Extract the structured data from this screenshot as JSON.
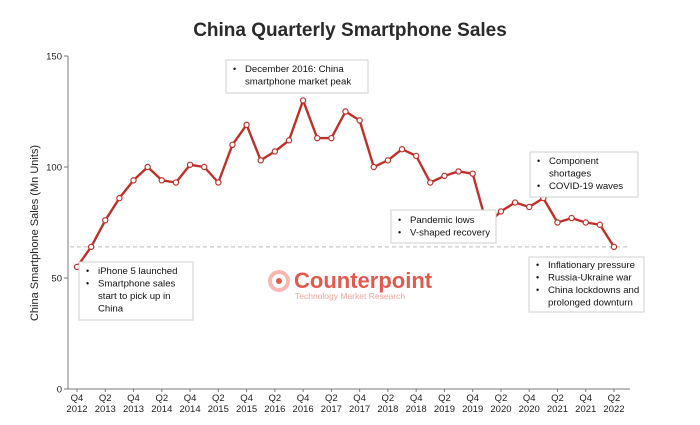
{
  "chart_data": {
    "type": "line",
    "title": "China Quarterly Smartphone Sales",
    "xlabel": "",
    "ylabel": "China Smartphone Sales (Mn Units)",
    "ylim": [
      0,
      150
    ],
    "yticks": [
      0,
      50,
      100,
      150
    ],
    "grid": false,
    "categories": [
      "Q4 2012",
      "Q1 2013",
      "Q2 2013",
      "Q3 2013",
      "Q4 2013",
      "Q1 2014",
      "Q2 2014",
      "Q3 2014",
      "Q4 2014",
      "Q1 2015",
      "Q2 2015",
      "Q3 2015",
      "Q4 2015",
      "Q1 2016",
      "Q2 2016",
      "Q3 2016",
      "Q4 2016",
      "Q1 2017",
      "Q2 2017",
      "Q3 2017",
      "Q4 2017",
      "Q1 2018",
      "Q2 2018",
      "Q3 2018",
      "Q4 2018",
      "Q1 2019",
      "Q2 2019",
      "Q3 2019",
      "Q4 2019",
      "Q1 2020",
      "Q2 2020",
      "Q3 2020",
      "Q4 2020",
      "Q1 2021",
      "Q2 2021",
      "Q3 2021",
      "Q4 2021",
      "Q1 2022",
      "Q2 2022"
    ],
    "x_tick_labels": [
      {
        "q": "Q4",
        "y": "2012"
      },
      {
        "q": "Q2",
        "y": "2013"
      },
      {
        "q": "Q4",
        "y": "2013"
      },
      {
        "q": "Q2",
        "y": "2014"
      },
      {
        "q": "Q4",
        "y": "2014"
      },
      {
        "q": "Q2",
        "y": "2015"
      },
      {
        "q": "Q4",
        "y": "2015"
      },
      {
        "q": "Q2",
        "y": "2016"
      },
      {
        "q": "Q4",
        "y": "2016"
      },
      {
        "q": "Q2",
        "y": "2017"
      },
      {
        "q": "Q4",
        "y": "2017"
      },
      {
        "q": "Q2",
        "y": "2018"
      },
      {
        "q": "Q4",
        "y": "2018"
      },
      {
        "q": "Q2",
        "y": "2019"
      },
      {
        "q": "Q4",
        "y": "2019"
      },
      {
        "q": "Q2",
        "y": "2020"
      },
      {
        "q": "Q4",
        "y": "2020"
      },
      {
        "q": "Q2",
        "y": "2021"
      },
      {
        "q": "Q4",
        "y": "2021"
      },
      {
        "q": "Q2",
        "y": "2022"
      }
    ],
    "series": [
      {
        "name": "China Smartphone Sales",
        "color": "#c0302b",
        "values": [
          55,
          64,
          76,
          86,
          94,
          100,
          94,
          93,
          101,
          100,
          93,
          110,
          119,
          103,
          107,
          112,
          130,
          113,
          113,
          125,
          121,
          100,
          103,
          108,
          105,
          93,
          96,
          98,
          97,
          74,
          80,
          84,
          82,
          86,
          75,
          77,
          75,
          74,
          64
        ]
      }
    ],
    "reference_line": {
      "value": 64,
      "color": "#bbbbbb",
      "style": "dashed"
    },
    "annotations": [
      {
        "lines": [
          "December 2016: China",
          "smartphone market peak"
        ]
      },
      {
        "lines": [
          "iPhone 5 launched",
          "Smartphone sales",
          "start to pick up in",
          "China"
        ]
      },
      {
        "lines": [
          "Pandemic lows",
          "V-shaped recovery"
        ]
      },
      {
        "lines": [
          "Component",
          "shortages",
          "COVID-19 waves"
        ]
      },
      {
        "lines": [
          "Inflationary pressure",
          "Russia-Ukraine war",
          "China lockdowns and",
          "prolonged downturn"
        ]
      }
    ]
  },
  "watermark": {
    "name": "Counterpoint",
    "tagline": "Technology Market Research",
    "color": "#e05a4e"
  }
}
